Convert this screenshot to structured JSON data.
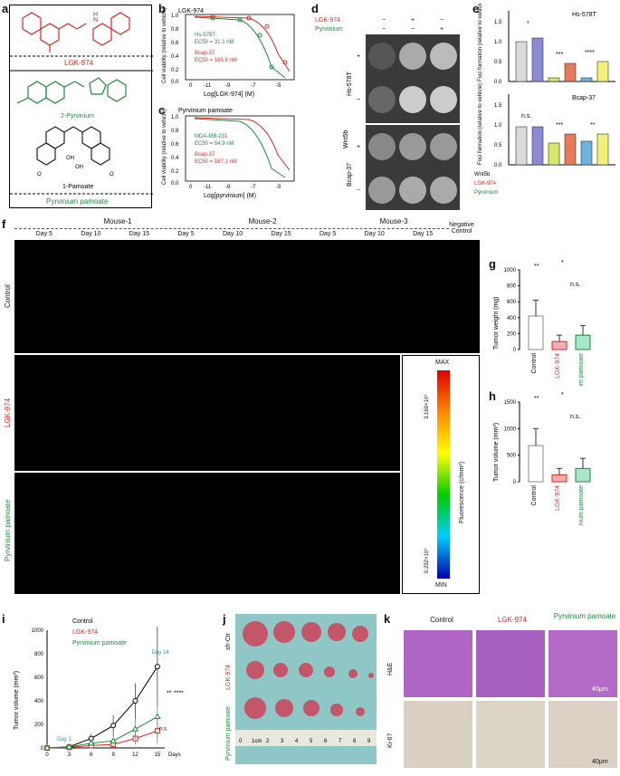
{
  "a": {
    "label": "a",
    "drug1": "LGK-974",
    "drug2": "Pyrvinium pamoate",
    "pyr": "2-Pyrvinium",
    "pam": "1-Pamoate",
    "n": "N",
    "h": "H",
    "o": "O",
    "oh": "OH"
  },
  "b": {
    "label": "b",
    "title": "LGK-974",
    "ylabel": "Cell viability (relative to vehicle)",
    "xlabel": "Log[LGK-974] (M)",
    "s1": "Hs-578T",
    "s1ec": "EC50 = 31.1 nM",
    "s2": "Bcap-37",
    "s2ec": "EC50 = 165.8 nM"
  },
  "c": {
    "label": "c",
    "title": "Pyrvinium pamoate",
    "ylabel": "Cell viability (relative to vehicle)",
    "xlabel": "Log[pyrvinium] (M)",
    "s1": "MDA-MB-231",
    "s1ec": "EC50 = 54.9 nM",
    "s2": "Bcap-37",
    "s2ec": "EC50 = 167.1 nM"
  },
  "d": {
    "label": "d",
    "lgk": "LGK-974",
    "pyr": "Pyrvinium",
    "cellA": "Hs-578T",
    "cellB": "Bcap-37",
    "wnt": "Wnt5b",
    "plus": "+",
    "minus": "−"
  },
  "e": {
    "label": "e",
    "ylabel": "Foci formation (relative to vehicle)",
    "top": "Hs-578T",
    "bottom": "Bcap-37",
    "wnt": "Wnt5b",
    "lgk": "LGK-974",
    "pyr": "Pyrvinium",
    "sig": [
      "*",
      "***",
      "****",
      "n.s.",
      "***",
      "**"
    ]
  },
  "f": {
    "label": "f",
    "mouse1": "Mouse-1",
    "mouse2": "Mouse-2",
    "mouse3": "Mouse-3",
    "days": [
      "Day 5",
      "Day 10",
      "Day 15",
      "Day 5",
      "Day 10",
      "Day 15",
      "Day 5",
      "Day 10",
      "Day 15"
    ],
    "neg": "Negative Control",
    "rows": [
      "Control",
      "LGK-974",
      "Pyrvinium pamoate"
    ],
    "max": "MAX",
    "min": "MIN",
    "hi": "3.169×10⁴",
    "lo": "0.292×10⁴",
    "unit": "Fluorescence (c/mm²)"
  },
  "g": {
    "label": "g",
    "ylabel": "Tumor weight (mg)",
    "cats": [
      "Control",
      "LGK-974",
      "Pyrvinium pamoate"
    ],
    "values": [
      420,
      100,
      180
    ],
    "err": [
      200,
      80,
      120
    ],
    "ticks": [
      "0",
      "200",
      "400",
      "600",
      "800",
      "1000"
    ],
    "sig": [
      "**",
      "*",
      "n.s."
    ]
  },
  "h": {
    "label": "h",
    "ylabel": "Tumor volume (mm³)",
    "cats": [
      "Control",
      "LGK-974",
      "Pyrvinium pamoate"
    ],
    "values": [
      680,
      130,
      250
    ],
    "err": [
      320,
      120,
      190
    ],
    "ticks": [
      "0",
      "500",
      "1000",
      "1500"
    ],
    "sig": [
      "**",
      "*",
      "n.s."
    ]
  },
  "chart_data": [
    {
      "type": "line",
      "title": "Tumor volume",
      "xlabel": "Days",
      "ylabel": "Tumor volume (mm³)",
      "x": [
        0,
        3,
        6,
        9,
        12,
        15
      ],
      "xticks": [
        "0",
        "3",
        "6",
        "9",
        "12",
        "15"
      ],
      "yticks": [
        "0",
        "200",
        "400",
        "600",
        "800",
        "1000"
      ],
      "ylim": [
        0,
        1000
      ],
      "series": [
        {
          "name": "Control",
          "values": [
            0,
            10,
            80,
            190,
            400,
            690
          ],
          "err": [
            0,
            10,
            40,
            90,
            150,
            340
          ]
        },
        {
          "name": "LGK-974",
          "values": [
            0,
            5,
            20,
            30,
            80,
            145
          ],
          "err": [
            0,
            5,
            15,
            20,
            50,
            110
          ]
        },
        {
          "name": "Pyrvinium pamoate",
          "values": [
            0,
            8,
            40,
            60,
            160,
            265
          ],
          "err": [
            0,
            8,
            25,
            40,
            90,
            180
          ]
        }
      ],
      "annotations": [
        "Day 1",
        "Day 14",
        "**",
        "****",
        "n.s."
      ]
    }
  ],
  "i": {
    "label": "i"
  },
  "j": {
    "label": "j",
    "rows": [
      "sh-Ctr",
      "LGK-974",
      "Pyrvinium pamoate"
    ],
    "ruler": [
      "0",
      "1cm",
      "2",
      "3",
      "4",
      "5",
      "6",
      "7",
      "8",
      "9"
    ]
  },
  "k": {
    "label": "k",
    "cols": [
      "Control",
      "LGK-974",
      "Pyrvinium pamoate"
    ],
    "rows": [
      "H&E",
      "Ki-67"
    ],
    "scale": "40μm"
  }
}
